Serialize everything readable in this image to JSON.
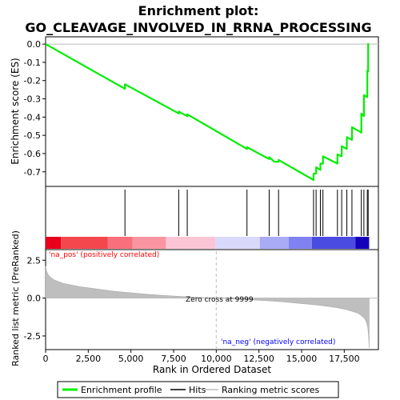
{
  "chart_data": {
    "type": "line",
    "title_line1": "Enrichment plot:",
    "title_line2": "GO_CLEAVAGE_INVOLVED_IN_RRNA_PROCESSING",
    "xlabel": "Rank in Ordered Dataset",
    "es_ylabel": "Enrichment score (ES)",
    "metric_ylabel": "Ranked list metric (PreRanked)",
    "xlim": [
      0,
      19500
    ],
    "x_ticks": [
      0,
      2500,
      5000,
      7500,
      10000,
      12500,
      15000,
      17500
    ],
    "x_tick_labels": [
      "0",
      "2,500",
      "5,000",
      "7,500",
      "10,000",
      "12,500",
      "15,000",
      "17,500"
    ],
    "es_ylim": [
      -0.78,
      0.04
    ],
    "es_ticks": [
      0.0,
      -0.1,
      -0.2,
      -0.3,
      -0.4,
      -0.5,
      -0.6,
      -0.7
    ],
    "es_tick_labels": [
      "0.0",
      "-0.1",
      "-0.2",
      "-0.3",
      "-0.4",
      "-0.5",
      "-0.6",
      "-0.7"
    ],
    "metric_ylim": [
      -3.4,
      3.2
    ],
    "metric_ticks": [
      2.5,
      0.0,
      -2.5
    ],
    "metric_tick_labels": [
      "2.5",
      "0.0",
      "-2.5"
    ],
    "total_genes": 18958,
    "zero_cross": 9999,
    "zero_cross_label": "Zero cross at 9999",
    "pos_label": "'na_pos' (positively correlated)",
    "neg_label": "'na_neg' (negatively correlated)",
    "hits": [
      4650,
      7800,
      8300,
      11800,
      13100,
      13650,
      15700,
      15850,
      16100,
      16250,
      17100,
      17350,
      17650,
      17950,
      18500,
      18650,
      18850,
      18900
    ],
    "es_curve": {
      "x": [
        0,
        4650,
        4651,
        7800,
        7801,
        8300,
        8301,
        11800,
        11801,
        13100,
        13101,
        13400,
        13650,
        13651,
        15700,
        15701,
        15850,
        15851,
        16100,
        16101,
        16250,
        16251,
        17100,
        17101,
        17350,
        17351,
        17650,
        17651,
        17950,
        17951,
        18500,
        18501,
        18650,
        18651,
        18850,
        18851,
        18900,
        18901
      ],
      "y": [
        0.0,
        -0.245,
        -0.22,
        -0.38,
        -0.37,
        -0.395,
        -0.385,
        -0.575,
        -0.565,
        -0.63,
        -0.62,
        -0.645,
        -0.645,
        -0.635,
        -0.745,
        -0.71,
        -0.71,
        -0.675,
        -0.69,
        -0.655,
        -0.655,
        -0.615,
        -0.655,
        -0.605,
        -0.615,
        -0.56,
        -0.575,
        -0.51,
        -0.525,
        -0.455,
        -0.485,
        -0.38,
        -0.395,
        -0.28,
        -0.29,
        -0.145,
        -0.15,
        0.005
      ]
    },
    "metric_curve": {
      "x": [
        0,
        60,
        200,
        500,
        1000,
        2000,
        3000,
        4000,
        5000,
        6000,
        7000,
        8000,
        9000,
        9999,
        11000,
        12000,
        13000,
        14000,
        15000,
        16000,
        17000,
        17600,
        18000,
        18300,
        18500,
        18700,
        18800,
        18880,
        18930,
        18958
      ],
      "y": [
        2.1,
        1.75,
        1.45,
        1.2,
        0.98,
        0.75,
        0.6,
        0.45,
        0.35,
        0.25,
        0.17,
        0.1,
        0.04,
        0.0,
        -0.06,
        -0.11,
        -0.18,
        -0.26,
        -0.36,
        -0.47,
        -0.62,
        -0.75,
        -0.88,
        -1.0,
        -1.15,
        -1.35,
        -1.6,
        -1.95,
        -2.6,
        -3.3
      ]
    },
    "legend": [
      "Enrichment profile",
      "Hits",
      "Ranking metric scores"
    ],
    "colors": {
      "es_line": "#00ee00",
      "hit": "#000000",
      "metric_fill": "#bebebe",
      "zero_line": "#bebebe",
      "pos_text": "#ff0000",
      "neg_text": "#0000ff",
      "frame": "#000000"
    },
    "heat_bar": [
      {
        "from": 0,
        "to": 900,
        "color": "#e8001b"
      },
      {
        "from": 900,
        "to": 3650,
        "color": "#f4474d"
      },
      {
        "from": 3650,
        "to": 5100,
        "color": "#f7707c"
      },
      {
        "from": 5100,
        "to": 7050,
        "color": "#f995a0"
      },
      {
        "from": 7050,
        "to": 9950,
        "color": "#fcc5d5"
      },
      {
        "from": 9950,
        "to": 12550,
        "color": "#d9d9fb"
      },
      {
        "from": 12550,
        "to": 14250,
        "color": "#a9abf5"
      },
      {
        "from": 14250,
        "to": 15600,
        "color": "#8082f1"
      },
      {
        "from": 15600,
        "to": 18150,
        "color": "#4a4be0"
      },
      {
        "from": 18150,
        "to": 18958,
        "color": "#1400bb"
      }
    ]
  }
}
